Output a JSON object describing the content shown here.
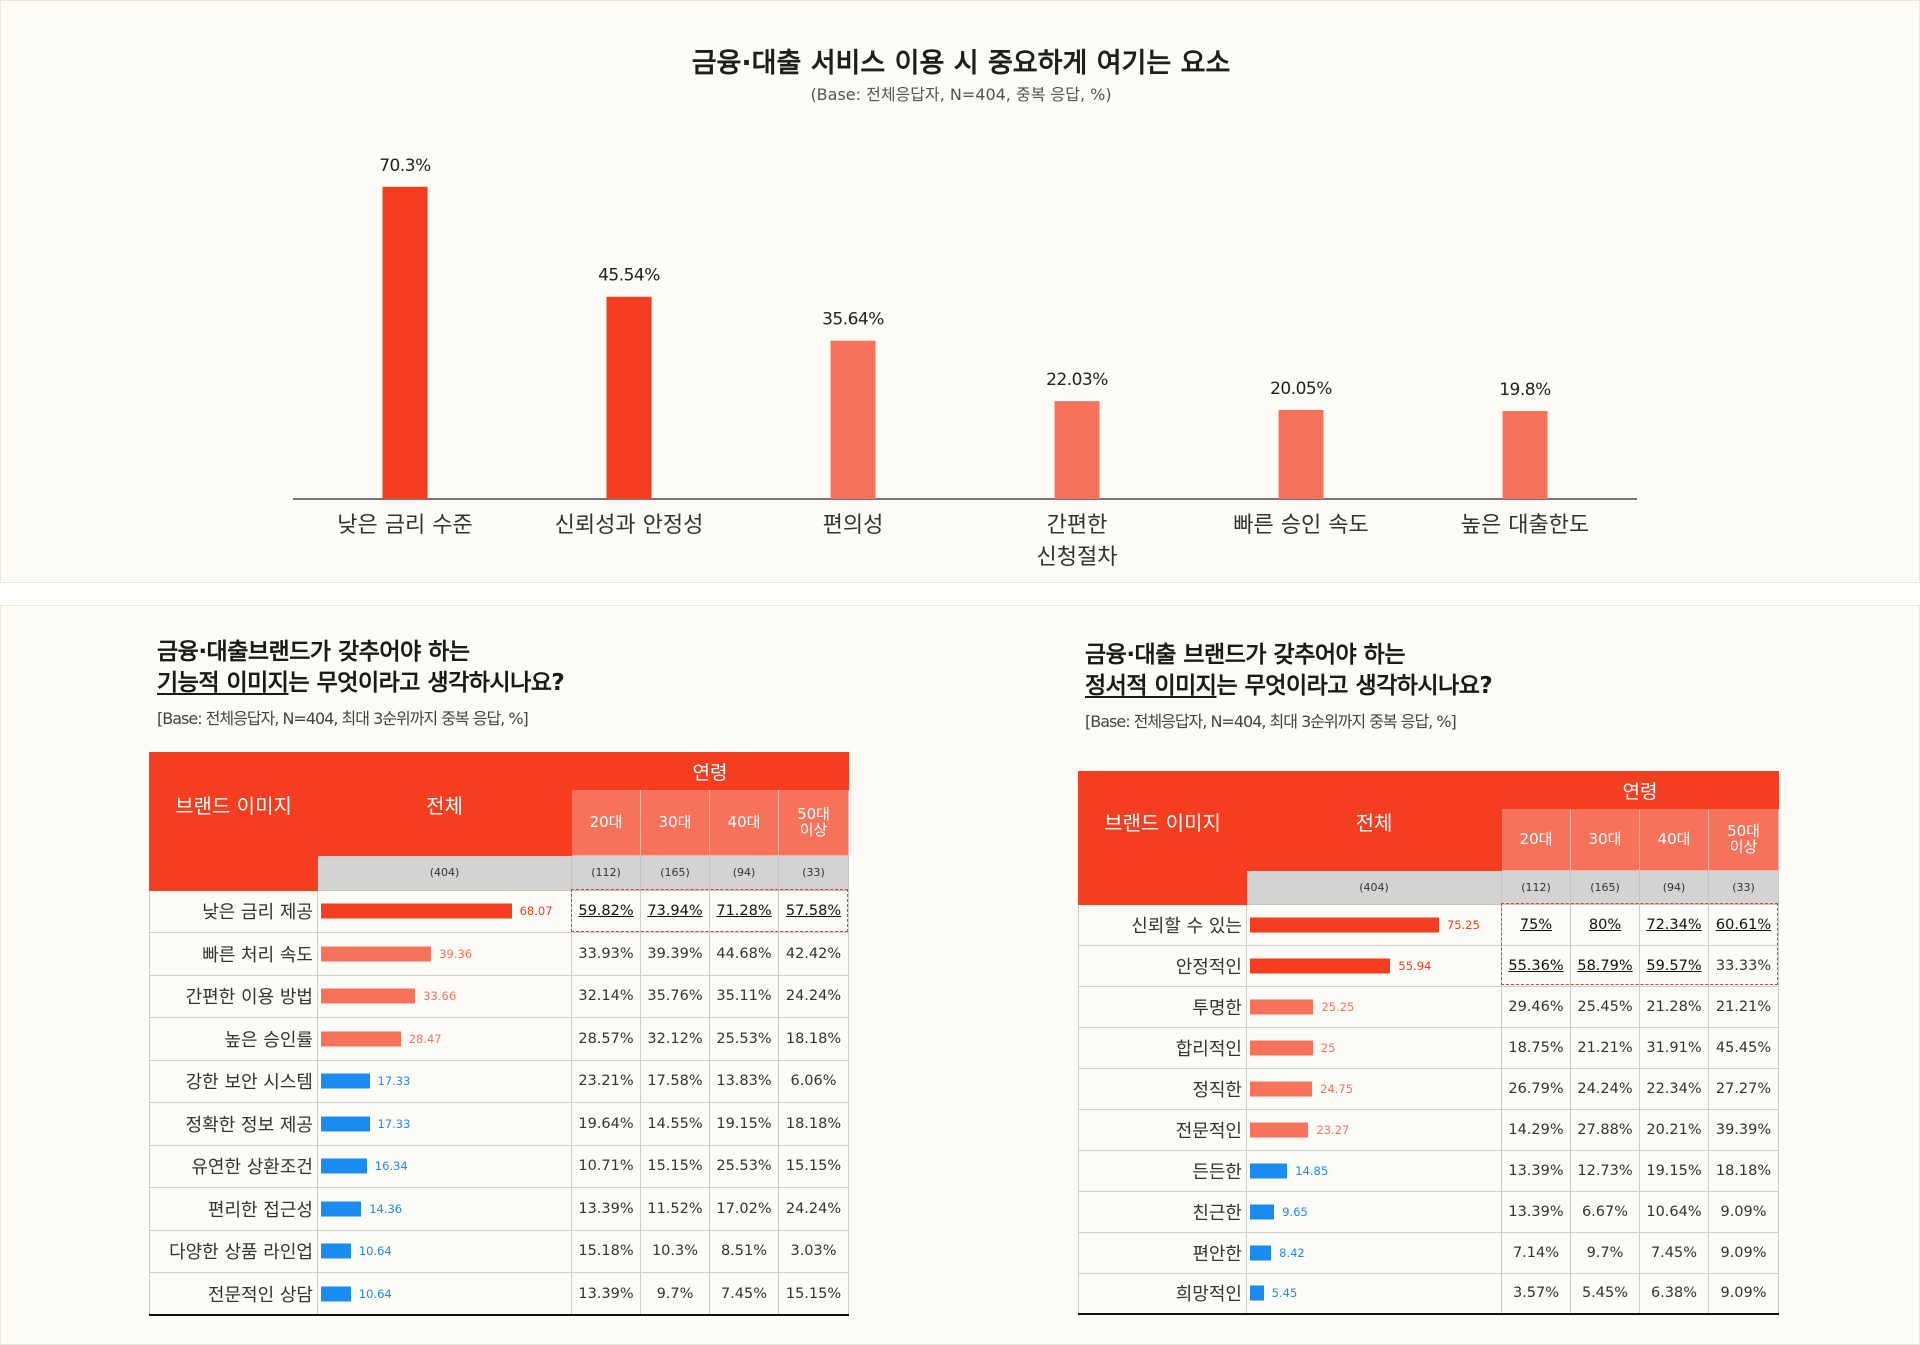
{
  "colors": {
    "primary": "#f53d1f",
    "secondary": "#f7725a",
    "accent_blue": "#1a8cf0"
  },
  "top": {
    "title": "금융·대출 서비스 이용 시 중요하게 여기는 요소",
    "subtitle": "(Base: 전체응답자, N=404, 중복 응답, %)"
  },
  "chart_data": {
    "type": "bar",
    "title": "금융·대출 서비스 이용 시 중요하게 여기는 요소",
    "subtitle": "(Base: 전체응답자, N=404, 중복 응답, %)",
    "categories": [
      "낮은 금리 수준",
      "신뢰성과 안정성",
      "편의성",
      "간편한\n신청절차",
      "빠른 승인 속도",
      "높은 대출한도"
    ],
    "values": [
      70.3,
      45.54,
      35.64,
      22.03,
      20.05,
      19.8
    ],
    "value_labels": [
      "70.3%",
      "45.54%",
      "35.64%",
      "22.03%",
      "20.05%",
      "19.8%"
    ],
    "ylim": [
      0,
      80
    ],
    "xlabel": "",
    "ylabel": "",
    "grid": false,
    "bar_colors": [
      "#f53d1f",
      "#f53d1f",
      "#f7725a",
      "#f7725a",
      "#f7725a",
      "#f7725a"
    ]
  },
  "left": {
    "title_line1": "금융·대출브랜드가 갖추어야 하는",
    "title_u": "기능적 이미지",
    "title_rest": "는 무엇이라고 생각하시나요?",
    "base": "[Base: 전체응답자, N=404, 최대 3순위까지 중복 응답, %]",
    "headers": {
      "brand": "브랜드 이미지",
      "total": "전체",
      "age": "연령",
      "total_n": "(404)"
    },
    "age_cols": [
      {
        "label": "20대",
        "n": "(112)"
      },
      {
        "label": "30대",
        "n": "(165)"
      },
      {
        "label": "40대",
        "n": "(94)"
      },
      {
        "label": "50대\n이상",
        "n": "(33)"
      }
    ],
    "rows": [
      {
        "label": "낮은 금리 제공",
        "total": 68.07,
        "total_label": "68.07",
        "tier": "primary",
        "ages": [
          "59.82%",
          "73.94%",
          "71.28%",
          "57.58%"
        ],
        "hl": [
          true,
          true,
          true,
          true
        ]
      },
      {
        "label": "빠른 처리 속도",
        "total": 39.36,
        "total_label": "39.36",
        "tier": "secondary",
        "ages": [
          "33.93%",
          "39.39%",
          "44.68%",
          "42.42%"
        ],
        "hl": [
          false,
          false,
          false,
          false
        ]
      },
      {
        "label": "간편한 이용 방법",
        "total": 33.66,
        "total_label": "33.66",
        "tier": "secondary",
        "ages": [
          "32.14%",
          "35.76%",
          "35.11%",
          "24.24%"
        ],
        "hl": [
          false,
          false,
          false,
          false
        ]
      },
      {
        "label": "높은 승인률",
        "total": 28.47,
        "total_label": "28.47",
        "tier": "secondary",
        "ages": [
          "28.57%",
          "32.12%",
          "25.53%",
          "18.18%"
        ],
        "hl": [
          false,
          false,
          false,
          false
        ]
      },
      {
        "label": "강한 보안 시스템",
        "total": 17.33,
        "total_label": "17.33",
        "tier": "blue",
        "ages": [
          "23.21%",
          "17.58%",
          "13.83%",
          "6.06%"
        ],
        "hl": [
          false,
          false,
          false,
          false
        ]
      },
      {
        "label": "정확한 정보 제공",
        "total": 17.33,
        "total_label": "17.33",
        "tier": "blue",
        "ages": [
          "19.64%",
          "14.55%",
          "19.15%",
          "18.18%"
        ],
        "hl": [
          false,
          false,
          false,
          false
        ]
      },
      {
        "label": "유연한 상환조건",
        "total": 16.34,
        "total_label": "16.34",
        "tier": "blue",
        "ages": [
          "10.71%",
          "15.15%",
          "25.53%",
          "15.15%"
        ],
        "hl": [
          false,
          false,
          false,
          false
        ]
      },
      {
        "label": "편리한 접근성",
        "total": 14.36,
        "total_label": "14.36",
        "tier": "blue",
        "ages": [
          "13.39%",
          "11.52%",
          "17.02%",
          "24.24%"
        ],
        "hl": [
          false,
          false,
          false,
          false
        ]
      },
      {
        "label": "다양한 상품 라인업",
        "total": 10.64,
        "total_label": "10.64",
        "tier": "blue",
        "ages": [
          "15.18%",
          "10.3%",
          "8.51%",
          "3.03%"
        ],
        "hl": [
          false,
          false,
          false,
          false
        ]
      },
      {
        "label": "전문적인 상담",
        "total": 10.64,
        "total_label": "10.64",
        "tier": "blue",
        "ages": [
          "13.39%",
          "9.7%",
          "7.45%",
          "15.15%"
        ],
        "hl": [
          false,
          false,
          false,
          false
        ]
      }
    ]
  },
  "right": {
    "title_line1": "금융·대출 브랜드가 갖추어야 하는",
    "title_u": "정서적 이미지",
    "title_rest": "는 무엇이라고 생각하시나요?",
    "base": "[Base: 전체응답자, N=404, 최대 3순위까지 중복 응답, %]",
    "headers": {
      "brand": "브랜드 이미지",
      "total": "전체",
      "age": "연령",
      "total_n": "(404)"
    },
    "age_cols": [
      {
        "label": "20대",
        "n": "(112)"
      },
      {
        "label": "30대",
        "n": "(165)"
      },
      {
        "label": "40대",
        "n": "(94)"
      },
      {
        "label": "50대\n이상",
        "n": "(33)"
      }
    ],
    "rows": [
      {
        "label": "신뢰할 수 있는",
        "total": 75.25,
        "total_label": "75.25",
        "tier": "primary",
        "ages": [
          "75%",
          "80%",
          "72.34%",
          "60.61%"
        ],
        "hl": [
          true,
          true,
          true,
          true
        ]
      },
      {
        "label": "안정적인",
        "total": 55.94,
        "total_label": "55.94",
        "tier": "primary",
        "ages": [
          "55.36%",
          "58.79%",
          "59.57%",
          "33.33%"
        ],
        "hl": [
          true,
          true,
          true,
          false
        ]
      },
      {
        "label": "투명한",
        "total": 25.25,
        "total_label": "25.25",
        "tier": "secondary",
        "ages": [
          "29.46%",
          "25.45%",
          "21.28%",
          "21.21%"
        ],
        "hl": [
          false,
          false,
          false,
          false
        ]
      },
      {
        "label": "합리적인",
        "total": 25,
        "total_label": "25",
        "tier": "secondary",
        "ages": [
          "18.75%",
          "21.21%",
          "31.91%",
          "45.45%"
        ],
        "hl": [
          false,
          false,
          false,
          false
        ]
      },
      {
        "label": "정직한",
        "total": 24.75,
        "total_label": "24.75",
        "tier": "secondary",
        "ages": [
          "26.79%",
          "24.24%",
          "22.34%",
          "27.27%"
        ],
        "hl": [
          false,
          false,
          false,
          false
        ]
      },
      {
        "label": "전문적인",
        "total": 23.27,
        "total_label": "23.27",
        "tier": "secondary",
        "ages": [
          "14.29%",
          "27.88%",
          "20.21%",
          "39.39%"
        ],
        "hl": [
          false,
          false,
          false,
          false
        ]
      },
      {
        "label": "든든한",
        "total": 14.85,
        "total_label": "14.85",
        "tier": "blue",
        "ages": [
          "13.39%",
          "12.73%",
          "19.15%",
          "18.18%"
        ],
        "hl": [
          false,
          false,
          false,
          false
        ]
      },
      {
        "label": "친근한",
        "total": 9.65,
        "total_label": "9.65",
        "tier": "blue",
        "ages": [
          "13.39%",
          "6.67%",
          "10.64%",
          "9.09%"
        ],
        "hl": [
          false,
          false,
          false,
          false
        ]
      },
      {
        "label": "편안한",
        "total": 8.42,
        "total_label": "8.42",
        "tier": "blue",
        "ages": [
          "7.14%",
          "9.7%",
          "7.45%",
          "9.09%"
        ],
        "hl": [
          false,
          false,
          false,
          false
        ]
      },
      {
        "label": "희망적인",
        "total": 5.45,
        "total_label": "5.45",
        "tier": "blue",
        "ages": [
          "3.57%",
          "5.45%",
          "6.38%",
          "9.09%"
        ],
        "hl": [
          false,
          false,
          false,
          false
        ]
      }
    ]
  }
}
